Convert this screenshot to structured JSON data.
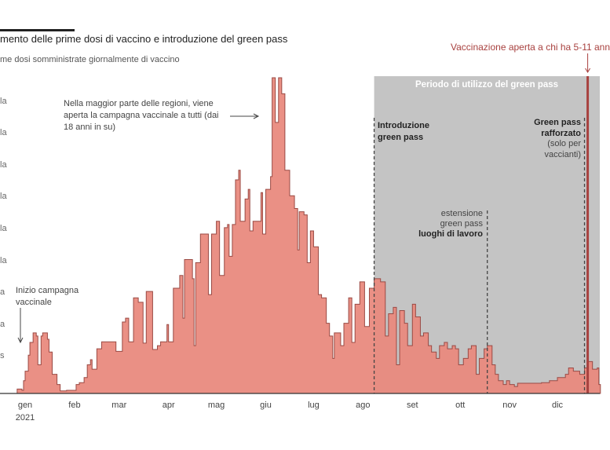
{
  "title": "mento delle prime dosi di vaccino e introduzione del green pass",
  "subtitle": "me dosi somministrate giornalmente di vaccino",
  "colors": {
    "fill": "#e98a7e",
    "stroke": "#9a4a44",
    "period_shade": "#c4c4c4",
    "event_red": "#a8413f",
    "annotation": "#444444"
  },
  "annotations": {
    "campaign_start": [
      "Inizio campagna",
      "vaccinale"
    ],
    "open_to_all": [
      "Nella maggior parte delle regioni, viene",
      "aperta la campagna vaccinale a tutti (dai",
      "18 anni in su)"
    ],
    "green_pass_period": "Periodo di utilizzo del green pass",
    "green_pass_intro": [
      "Introduzione",
      "green pass"
    ],
    "extension": [
      "estensione",
      "green pass",
      "luoghi di lavoro"
    ],
    "reinforced": [
      "Green pass",
      "rafforzato",
      "(solo per",
      "vaccianti)"
    ],
    "kids_vaccination": "Vaccinazione aperta a chi ha 5-11 ann"
  },
  "chart_data": {
    "type": "area",
    "title": "mento delle prime dosi di vaccino e introduzione del green pass",
    "ylabel": "me dosi somministrate giornalmente di vaccino",
    "step": true,
    "xlim": [
      "2020-12-22",
      "2021-12-28"
    ],
    "ylim": [
      0,
      500
    ],
    "y_ticks": [
      50,
      100,
      150,
      200,
      250,
      300,
      350,
      400,
      450
    ],
    "y_tick_labels": [
      "s",
      "a",
      "a",
      "la",
      "la",
      "la",
      "la",
      "la",
      "la"
    ],
    "x_ticks": [
      "2021-01-01",
      "2021-02-01",
      "2021-03-01",
      "2021-04-01",
      "2021-05-01",
      "2021-06-01",
      "2021-07-01",
      "2021-08-01",
      "2021-09-01",
      "2021-10-01",
      "2021-11-01",
      "2021-12-01"
    ],
    "x_tick_labels": [
      "gen",
      "feb",
      "mar",
      "apr",
      "mag",
      "giu",
      "lug",
      "ago",
      "set",
      "ott",
      "nov",
      "dic"
    ],
    "x_year_label": "2021",
    "grid": false,
    "events": [
      {
        "date": "2021-08-08",
        "style": "dashed",
        "label": "Introduzione green pass"
      },
      {
        "date": "2021-10-18",
        "style": "dashed",
        "label": "estensione green pass luoghi di lavoro"
      },
      {
        "date": "2021-12-18",
        "style": "dashed",
        "label": "Green pass rafforzato (solo per vaccianti)"
      },
      {
        "date": "2021-12-20",
        "style": "solid-red",
        "label": "Vaccinazione aperta a chi ha 5-11 ann"
      }
    ],
    "shaded_period": {
      "start": "2021-08-08",
      "label": "Periodo di utilizzo del green pass"
    },
    "series": [
      {
        "points": [
          [
            "2020-12-27",
            7
          ],
          [
            "2020-12-30",
            5
          ],
          [
            "2020-12-31",
            20
          ],
          [
            "2021-01-01",
            35
          ],
          [
            "2021-01-03",
            60
          ],
          [
            "2021-01-04",
            80
          ],
          [
            "2021-01-06",
            95
          ],
          [
            "2021-01-08",
            90
          ],
          [
            "2021-01-09",
            45
          ],
          [
            "2021-01-11",
            90
          ],
          [
            "2021-01-12",
            95
          ],
          [
            "2021-01-15",
            85
          ],
          [
            "2021-01-16",
            65
          ],
          [
            "2021-01-18",
            30
          ],
          [
            "2021-01-21",
            14
          ],
          [
            "2021-01-23",
            4
          ],
          [
            "2021-01-27",
            5
          ],
          [
            "2021-02-01",
            5
          ],
          [
            "2021-02-02",
            14
          ],
          [
            "2021-02-04",
            17
          ],
          [
            "2021-02-07",
            25
          ],
          [
            "2021-02-09",
            45
          ],
          [
            "2021-02-11",
            53
          ],
          [
            "2021-02-12",
            38
          ],
          [
            "2021-02-15",
            70
          ],
          [
            "2021-02-18",
            81
          ],
          [
            "2021-02-23",
            81
          ],
          [
            "2021-02-27",
            66
          ],
          [
            "2021-03-03",
            112
          ],
          [
            "2021-03-05",
            118
          ],
          [
            "2021-03-07",
            81
          ],
          [
            "2021-03-10",
            150
          ],
          [
            "2021-03-13",
            143
          ],
          [
            "2021-03-16",
            79
          ],
          [
            "2021-03-18",
            160
          ],
          [
            "2021-03-20",
            160
          ],
          [
            "2021-03-22",
            69
          ],
          [
            "2021-03-25",
            75
          ],
          [
            "2021-03-27",
            81
          ],
          [
            "2021-03-31",
            108
          ],
          [
            "2021-04-01",
            81
          ],
          [
            "2021-04-04",
            165
          ],
          [
            "2021-04-08",
            185
          ],
          [
            "2021-04-10",
            118
          ],
          [
            "2021-04-11",
            210
          ],
          [
            "2021-04-16",
            180
          ],
          [
            "2021-04-17",
            75
          ],
          [
            "2021-04-18",
            205
          ],
          [
            "2021-04-21",
            250
          ],
          [
            "2021-04-25",
            250
          ],
          [
            "2021-04-26",
            155
          ],
          [
            "2021-04-28",
            250
          ],
          [
            "2021-05-01",
            270
          ],
          [
            "2021-05-03",
            185
          ],
          [
            "2021-05-06",
            260
          ],
          [
            "2021-05-08",
            265
          ],
          [
            "2021-05-09",
            215
          ],
          [
            "2021-05-11",
            265
          ],
          [
            "2021-05-13",
            335
          ],
          [
            "2021-05-15",
            350
          ],
          [
            "2021-05-16",
            270
          ],
          [
            "2021-05-19",
            305
          ],
          [
            "2021-05-21",
            320
          ],
          [
            "2021-05-22",
            255
          ],
          [
            "2021-05-24",
            270
          ],
          [
            "2021-05-29",
            315
          ],
          [
            "2021-05-30",
            250
          ],
          [
            "2021-06-01",
            320
          ],
          [
            "2021-06-04",
            340
          ],
          [
            "2021-06-05",
            495
          ],
          [
            "2021-06-07",
            425
          ],
          [
            "2021-06-09",
            495
          ],
          [
            "2021-06-11",
            470
          ],
          [
            "2021-06-13",
            350
          ],
          [
            "2021-06-16",
            310
          ],
          [
            "2021-06-19",
            290
          ],
          [
            "2021-06-21",
            225
          ],
          [
            "2021-06-22",
            285
          ],
          [
            "2021-06-25",
            280
          ],
          [
            "2021-06-27",
            205
          ],
          [
            "2021-06-29",
            255
          ],
          [
            "2021-07-01",
            230
          ],
          [
            "2021-07-04",
            155
          ],
          [
            "2021-07-06",
            150
          ],
          [
            "2021-07-09",
            110
          ],
          [
            "2021-07-11",
            90
          ],
          [
            "2021-07-13",
            55
          ],
          [
            "2021-07-14",
            95
          ],
          [
            "2021-07-16",
            95
          ],
          [
            "2021-07-18",
            75
          ],
          [
            "2021-07-20",
            110
          ],
          [
            "2021-07-23",
            150
          ],
          [
            "2021-07-25",
            80
          ],
          [
            "2021-07-27",
            140
          ],
          [
            "2021-07-30",
            175
          ],
          [
            "2021-08-02",
            105
          ],
          [
            "2021-08-05",
            165
          ],
          [
            "2021-08-08",
            180
          ],
          [
            "2021-08-12",
            175
          ],
          [
            "2021-08-15",
            90
          ],
          [
            "2021-08-17",
            125
          ],
          [
            "2021-08-20",
            135
          ],
          [
            "2021-08-22",
            45
          ],
          [
            "2021-08-24",
            130
          ],
          [
            "2021-08-27",
            110
          ],
          [
            "2021-08-29",
            75
          ],
          [
            "2021-09-01",
            140
          ],
          [
            "2021-09-03",
            120
          ],
          [
            "2021-09-06",
            90
          ],
          [
            "2021-09-08",
            95
          ],
          [
            "2021-09-11",
            75
          ],
          [
            "2021-09-13",
            65
          ],
          [
            "2021-09-16",
            55
          ],
          [
            "2021-09-18",
            75
          ],
          [
            "2021-09-21",
            80
          ],
          [
            "2021-09-23",
            70
          ],
          [
            "2021-09-26",
            75
          ],
          [
            "2021-09-28",
            70
          ],
          [
            "2021-09-30",
            45
          ],
          [
            "2021-10-03",
            55
          ],
          [
            "2021-10-06",
            70
          ],
          [
            "2021-10-08",
            75
          ],
          [
            "2021-10-11",
            30
          ],
          [
            "2021-10-13",
            55
          ],
          [
            "2021-10-16",
            70
          ],
          [
            "2021-10-18",
            75
          ],
          [
            "2021-10-21",
            45
          ],
          [
            "2021-10-23",
            30
          ],
          [
            "2021-10-25",
            20
          ],
          [
            "2021-10-28",
            14
          ],
          [
            "2021-10-30",
            20
          ],
          [
            "2021-11-01",
            14
          ],
          [
            "2021-11-04",
            11
          ],
          [
            "2021-11-06",
            16
          ],
          [
            "2021-11-11",
            16
          ],
          [
            "2021-11-16",
            16
          ],
          [
            "2021-11-21",
            17
          ],
          [
            "2021-11-26",
            20
          ],
          [
            "2021-12-01",
            25
          ],
          [
            "2021-12-06",
            30
          ],
          [
            "2021-12-08",
            40
          ],
          [
            "2021-12-11",
            35
          ],
          [
            "2021-12-15",
            30
          ],
          [
            "2021-12-18",
            40
          ],
          [
            "2021-12-20",
            50
          ],
          [
            "2021-12-23",
            38
          ],
          [
            "2021-12-26",
            40
          ],
          [
            "2021-12-27",
            14
          ]
        ]
      }
    ]
  }
}
